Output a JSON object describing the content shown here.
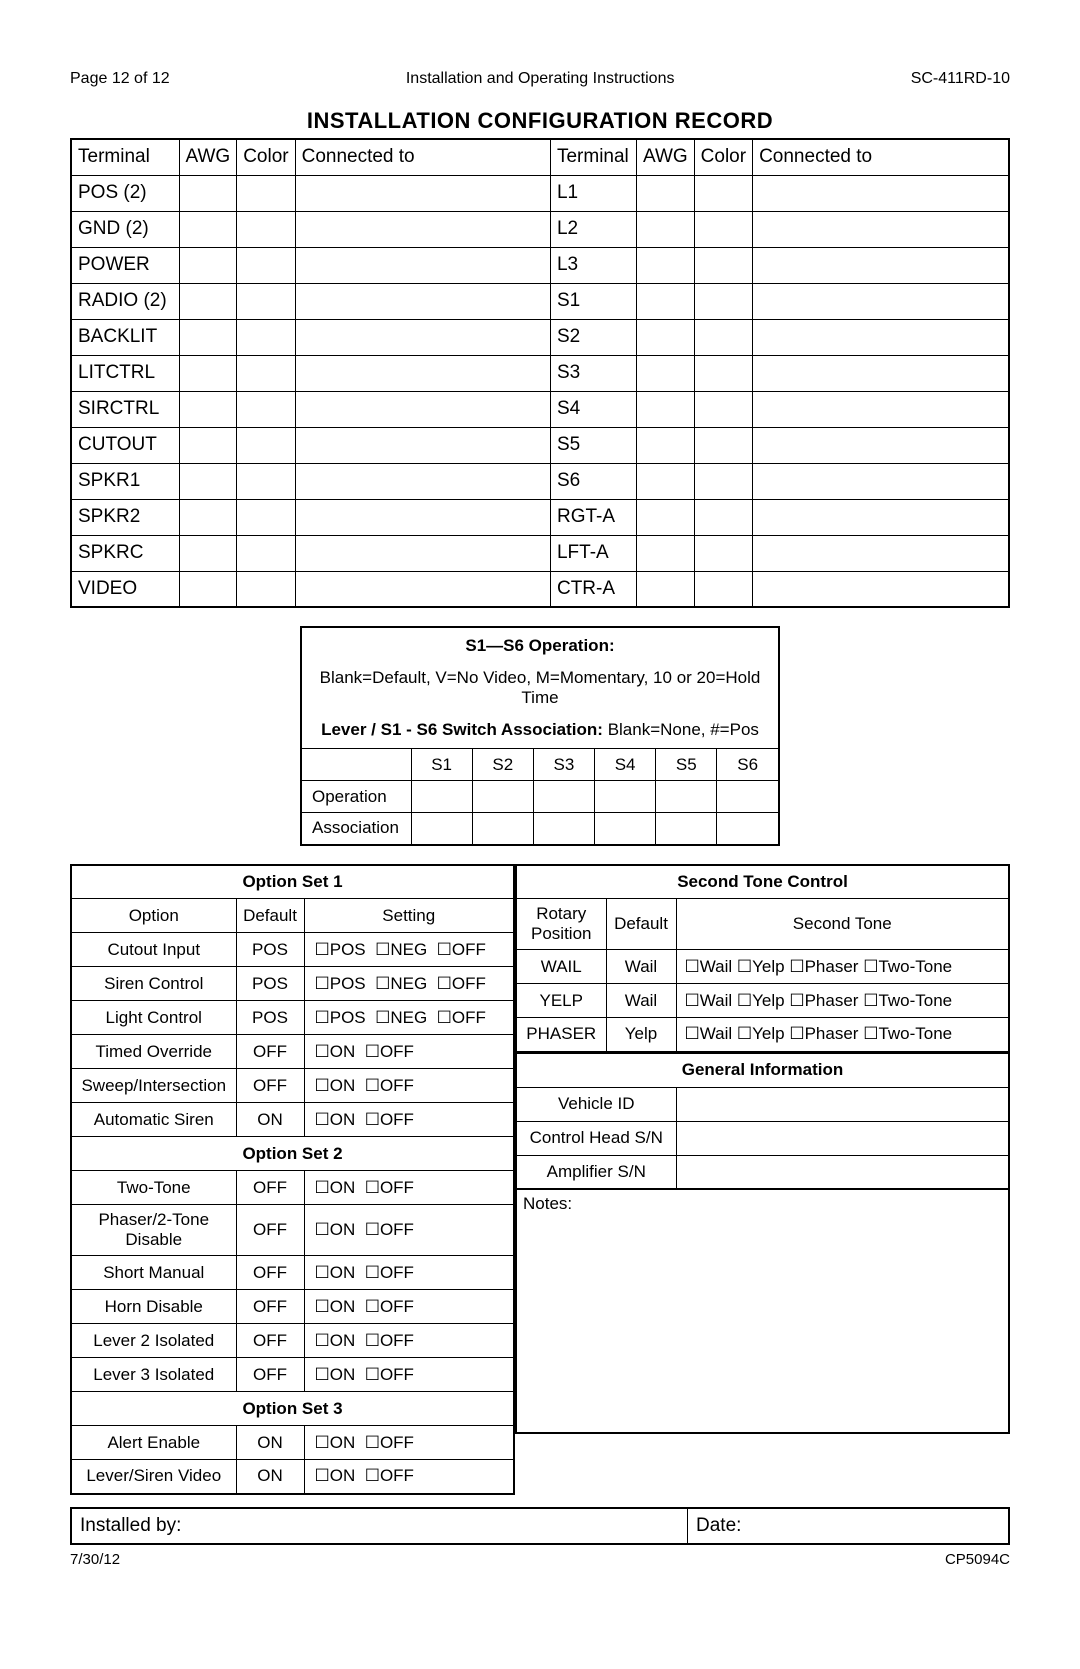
{
  "header": {
    "page_of": "Page 12 of 12",
    "center": "Installation and Operating Instructions",
    "model": "SC-411RD-10"
  },
  "title": "INSTALLATION CONFIGURATION RECORD",
  "terminal_headers": [
    "Terminal",
    "AWG",
    "Color",
    "Connected to"
  ],
  "terminals_left": [
    "POS (2)",
    "GND (2)",
    "POWER",
    "RADIO (2)",
    "BACKLIT",
    "LITCTRL",
    "SIRCTRL",
    "CUTOUT",
    "SPKR1",
    "SPKR2",
    "SPKRC",
    "VIDEO"
  ],
  "terminals_right": [
    "L1",
    "L2",
    "L3",
    "S1",
    "S2",
    "S3",
    "S4",
    "S5",
    "S6",
    "RGT-A",
    "LFT-A",
    "CTR-A"
  ],
  "s1s6": {
    "title": "S1—S6 Operation:",
    "desc": "Blank=Default, V=No Video, M=Momentary, 10 or 20=Hold Time",
    "lever_label": "Lever / S1 - S6 Switch Association:",
    "lever_desc": "Blank=None, #=Pos",
    "cols": [
      "S1",
      "S2",
      "S3",
      "S4",
      "S5",
      "S6"
    ],
    "rows": [
      "Operation",
      "Association"
    ]
  },
  "option_sets": {
    "set1": {
      "title": "Option Set 1",
      "columns": [
        "Option",
        "Default",
        "Setting"
      ],
      "rows": [
        {
          "opt": "Cutout Input",
          "def": "POS",
          "checks": [
            "POS",
            "NEG",
            "OFF"
          ]
        },
        {
          "opt": "Siren Control",
          "def": "POS",
          "checks": [
            "POS",
            "NEG",
            "OFF"
          ]
        },
        {
          "opt": "Light Control",
          "def": "POS",
          "checks": [
            "POS",
            "NEG",
            "OFF"
          ]
        },
        {
          "opt": "Timed Override",
          "def": "OFF",
          "checks": [
            "ON",
            "OFF"
          ]
        },
        {
          "opt": "Sweep/Intersection",
          "def": "OFF",
          "checks": [
            "ON",
            "OFF"
          ]
        },
        {
          "opt": "Automatic Siren",
          "def": "ON",
          "checks": [
            "ON",
            "OFF"
          ]
        }
      ]
    },
    "set2": {
      "title": "Option Set 2",
      "rows": [
        {
          "opt": "Two-Tone",
          "def": "OFF",
          "checks": [
            "ON",
            "OFF"
          ]
        },
        {
          "opt": "Phaser/2-Tone Disable",
          "def": "OFF",
          "checks": [
            "ON",
            "OFF"
          ]
        },
        {
          "opt": "Short Manual",
          "def": "OFF",
          "checks": [
            "ON",
            "OFF"
          ]
        },
        {
          "opt": "Horn Disable",
          "def": "OFF",
          "checks": [
            "ON",
            "OFF"
          ]
        },
        {
          "opt": "Lever 2 Isolated",
          "def": "OFF",
          "checks": [
            "ON",
            "OFF"
          ]
        },
        {
          "opt": "Lever 3 Isolated",
          "def": "OFF",
          "checks": [
            "ON",
            "OFF"
          ]
        }
      ]
    },
    "set3": {
      "title": "Option Set 3",
      "rows": [
        {
          "opt": "Alert Enable",
          "def": "ON",
          "checks": [
            "ON",
            "OFF"
          ]
        },
        {
          "opt": "Lever/Siren Video",
          "def": "ON",
          "checks": [
            "ON",
            "OFF"
          ]
        }
      ]
    }
  },
  "second_tone": {
    "title": "Second Tone Control",
    "columns": [
      "Rotary Position",
      "Default",
      "Second Tone"
    ],
    "rows": [
      {
        "pos": "WAIL",
        "def": "Wail",
        "checks": [
          "Wail",
          "Yelp",
          "Phaser",
          "Two-Tone"
        ]
      },
      {
        "pos": "YELP",
        "def": "Wail",
        "checks": [
          "Wail",
          "Yelp",
          "Phaser",
          "Two-Tone"
        ]
      },
      {
        "pos": "PHASER",
        "def": "Yelp",
        "checks": [
          "Wail",
          "Yelp",
          "Phaser",
          "Two-Tone"
        ]
      }
    ]
  },
  "general_info": {
    "title": "General Information",
    "rows": [
      "Vehicle ID",
      "Control Head S/N",
      "Amplifier S/N"
    ],
    "notes_label": "Notes:"
  },
  "installed": {
    "by_label": "Installed by:",
    "date_label": "Date:"
  },
  "footer": {
    "date": "7/30/12",
    "doc": "CP5094C"
  },
  "checkbox_glyph": "☐"
}
